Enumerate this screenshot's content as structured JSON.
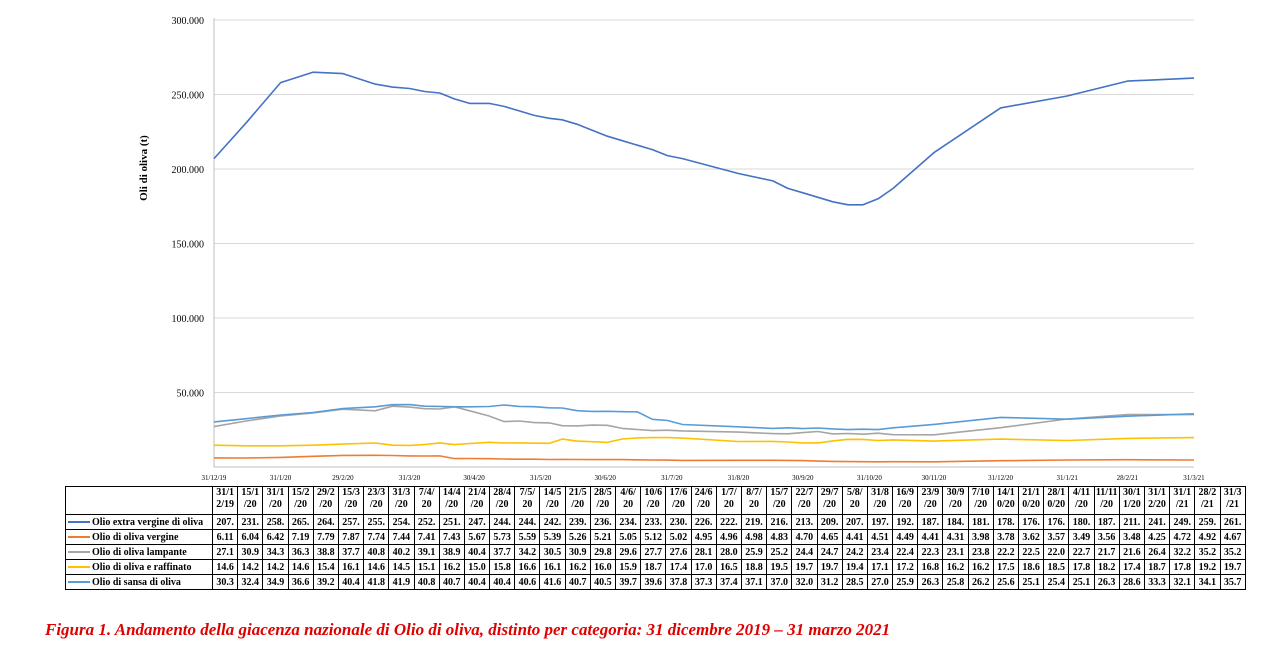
{
  "chart_data": {
    "type": "line",
    "ylabel": "Oli di oliva (t)",
    "ylim": [
      0,
      300000
    ],
    "yticks": [
      {
        "value": 50000,
        "label": "50.000"
      },
      {
        "value": 100000,
        "label": "100.000"
      },
      {
        "value": 150000,
        "label": "150.000"
      },
      {
        "value": 200000,
        "label": "200.000"
      },
      {
        "value": 250000,
        "label": "250.000"
      },
      {
        "value": 300000,
        "label": "300.000"
      }
    ],
    "grid": true,
    "legend": "table",
    "x_dates": [
      "31/12/19",
      "15/1/20",
      "31/1/20",
      "15/2/20",
      "29/2/20",
      "15/3/20",
      "23/3/20",
      "31/3/20",
      "7/4/20",
      "14/4/20",
      "21/4/20",
      "28/4/20",
      "7/5/20",
      "14/5/20",
      "21/5/20",
      "28/5/20",
      "4/6/20",
      "10/6/20",
      "17/6/20",
      "24/6/20",
      "1/7/20",
      "8/7/20",
      "15/7/20",
      "22/7/20",
      "29/7/20",
      "5/8/20",
      "31/8/20",
      "16/9/20",
      "23/9/20",
      "30/9/20",
      "7/10/20",
      "14/10/20",
      "21/10/20",
      "28/10/20",
      "4/11/20",
      "11/11/20",
      "30/11/20",
      "31/12/20",
      "31/1/21",
      "28/2/21",
      "31/3/21"
    ],
    "xtick_labels": [
      "31/12/19",
      "31/1/20",
      "29/2/20",
      "31/3/20",
      "30/4/20",
      "31/5/20",
      "30/6/20",
      "31/7/20",
      "31/8/20",
      "30/9/20",
      "31/10/20",
      "30/11/20",
      "31/12/20",
      "31/1/21",
      "28/2/21",
      "31/3/21"
    ],
    "table_headers": [
      "31/1\n2/19",
      "15/1\n/20",
      "31/1\n/20",
      "15/2\n/20",
      "29/2\n/20",
      "15/3\n/20",
      "23/3\n/20",
      "31/3\n/20",
      "7/4/\n20",
      "14/4\n/20",
      "21/4\n/20",
      "28/4\n/20",
      "7/5/\n20",
      "14/5\n/20",
      "21/5\n/20",
      "28/5\n/20",
      "4/6/\n20",
      "10/6\n/20",
      "17/6\n/20",
      "24/6\n/20",
      "1/7/\n20",
      "8/7/\n20",
      "15/7\n/20",
      "22/7\n/20",
      "29/7\n/20",
      "5/8/\n20",
      "31/8\n/20",
      "16/9\n/20",
      "23/9\n/20",
      "30/9\n/20",
      "7/10\n/20",
      "14/1\n0/20",
      "21/1\n0/20",
      "28/1\n0/20",
      "4/11\n/20",
      "11/11\n/20",
      "30/1\n1/20",
      "31/1\n2/20",
      "31/1\n/21",
      "28/2\n/21",
      "31/3\n/21"
    ],
    "series": [
      {
        "name": "Olio extra vergine di oliva",
        "color": "#4472C4",
        "values": [
          207,
          231,
          258,
          265,
          264,
          257,
          255,
          254,
          252,
          251,
          247,
          244,
          244,
          242,
          239,
          236,
          234,
          233,
          230,
          226,
          222,
          219,
          216,
          213,
          209,
          207,
          197,
          192,
          187,
          184,
          181,
          178,
          176,
          176,
          180,
          187,
          211,
          241,
          249,
          259,
          261
        ],
        "table": [
          "207.",
          "231.",
          "258.",
          "265.",
          "264.",
          "257.",
          "255.",
          "254.",
          "252.",
          "251.",
          "247.",
          "244.",
          "244.",
          "242.",
          "239.",
          "236.",
          "234.",
          "233.",
          "230.",
          "226.",
          "222.",
          "219.",
          "216.",
          "213.",
          "209.",
          "207.",
          "197.",
          "192.",
          "187.",
          "184.",
          "181.",
          "178.",
          "176.",
          "176.",
          "180.",
          "187.",
          "211.",
          "241.",
          "249.",
          "259.",
          "261."
        ]
      },
      {
        "name": "Olio di oliva vergine",
        "color": "#ED7D31",
        "values": [
          6.11,
          6.04,
          6.42,
          7.19,
          7.79,
          7.87,
          7.74,
          7.44,
          7.41,
          7.43,
          5.67,
          5.73,
          5.59,
          5.39,
          5.26,
          5.21,
          5.05,
          5.12,
          5.02,
          4.95,
          4.96,
          4.98,
          4.83,
          4.7,
          4.65,
          4.41,
          4.51,
          4.49,
          4.41,
          4.31,
          3.98,
          3.78,
          3.62,
          3.57,
          3.49,
          3.56,
          3.48,
          4.25,
          4.72,
          4.92,
          4.67
        ],
        "table": [
          "6.11",
          "6.04",
          "6.42",
          "7.19",
          "7.79",
          "7.87",
          "7.74",
          "7.44",
          "7.41",
          "7.43",
          "5.67",
          "5.73",
          "5.59",
          "5.39",
          "5.26",
          "5.21",
          "5.05",
          "5.12",
          "5.02",
          "4.95",
          "4.96",
          "4.98",
          "4.83",
          "4.70",
          "4.65",
          "4.41",
          "4.51",
          "4.49",
          "4.41",
          "4.31",
          "3.98",
          "3.78",
          "3.62",
          "3.57",
          "3.49",
          "3.56",
          "3.48",
          "4.25",
          "4.72",
          "4.92",
          "4.67"
        ]
      },
      {
        "name": "Olio di oliva lampante",
        "color": "#A5A5A5",
        "values": [
          27.1,
          30.9,
          34.3,
          36.3,
          38.8,
          37.7,
          40.8,
          40.2,
          39.1,
          38.9,
          40.4,
          37.7,
          34.2,
          30.5,
          30.9,
          29.8,
          29.6,
          27.7,
          27.6,
          28.1,
          28.0,
          25.9,
          25.2,
          24.4,
          24.7,
          24.2,
          23.4,
          22.4,
          22.3,
          23.1,
          23.8,
          22.2,
          22.5,
          22.0,
          22.7,
          21.7,
          21.6,
          26.4,
          32.2,
          35.2,
          35.2
        ],
        "table": [
          "27.1",
          "30.9",
          "34.3",
          "36.3",
          "38.8",
          "37.7",
          "40.8",
          "40.2",
          "39.1",
          "38.9",
          "40.4",
          "37.7",
          "34.2",
          "30.5",
          "30.9",
          "29.8",
          "29.6",
          "27.7",
          "27.6",
          "28.1",
          "28.0",
          "25.9",
          "25.2",
          "24.4",
          "24.7",
          "24.2",
          "23.4",
          "22.4",
          "22.3",
          "23.1",
          "23.8",
          "22.2",
          "22.5",
          "22.0",
          "22.7",
          "21.7",
          "21.6",
          "26.4",
          "32.2",
          "35.2",
          "35.2"
        ]
      },
      {
        "name": "Olio di oliva e raffinato",
        "color": "#FFC000",
        "values": [
          14.6,
          14.2,
          14.2,
          14.6,
          15.4,
          16.1,
          14.6,
          14.5,
          15.1,
          16.2,
          15.0,
          15.8,
          16.6,
          16.1,
          16.2,
          16.0,
          15.9,
          18.7,
          17.4,
          17.0,
          16.5,
          18.8,
          19.5,
          19.7,
          19.7,
          19.4,
          17.1,
          17.2,
          16.8,
          16.2,
          16.2,
          17.5,
          18.6,
          18.5,
          17.8,
          18.2,
          17.4,
          18.7,
          17.8,
          19.2,
          19.7
        ],
        "table": [
          "14.6",
          "14.2",
          "14.2",
          "14.6",
          "15.4",
          "16.1",
          "14.6",
          "14.5",
          "15.1",
          "16.2",
          "15.0",
          "15.8",
          "16.6",
          "16.1",
          "16.2",
          "16.0",
          "15.9",
          "18.7",
          "17.4",
          "17.0",
          "16.5",
          "18.8",
          "19.5",
          "19.7",
          "19.7",
          "19.4",
          "17.1",
          "17.2",
          "16.8",
          "16.2",
          "16.2",
          "17.5",
          "18.6",
          "18.5",
          "17.8",
          "18.2",
          "17.4",
          "18.7",
          "17.8",
          "19.2",
          "19.7"
        ]
      },
      {
        "name": "Olio di sansa di oliva",
        "color": "#5B9BD5",
        "values": [
          30.3,
          32.4,
          34.9,
          36.6,
          39.2,
          40.4,
          41.8,
          41.9,
          40.8,
          40.7,
          40.4,
          40.4,
          40.6,
          41.6,
          40.7,
          40.5,
          39.7,
          39.6,
          37.8,
          37.3,
          37.4,
          37.1,
          37.0,
          32.0,
          31.2,
          28.5,
          27.0,
          25.9,
          26.3,
          25.8,
          26.2,
          25.6,
          25.1,
          25.4,
          25.1,
          26.3,
          28.6,
          33.3,
          32.1,
          34.1,
          35.7
        ],
        "table": [
          "30.3",
          "32.4",
          "34.9",
          "36.6",
          "39.2",
          "40.4",
          "41.8",
          "41.9",
          "40.8",
          "40.7",
          "40.4",
          "40.4",
          "40.6",
          "41.6",
          "40.7",
          "40.5",
          "39.7",
          "39.6",
          "37.8",
          "37.3",
          "37.4",
          "37.1",
          "37.0",
          "32.0",
          "31.2",
          "28.5",
          "27.0",
          "25.9",
          "26.3",
          "25.8",
          "26.2",
          "25.6",
          "25.1",
          "25.4",
          "25.1",
          "26.3",
          "28.6",
          "33.3",
          "32.1",
          "34.1",
          "35.7"
        ]
      }
    ]
  },
  "caption": "Figura 1. Andamento della giacenza nazionale di Olio di oliva, distinto per categoria: 31 dicembre 2019 – 31 marzo 2021"
}
